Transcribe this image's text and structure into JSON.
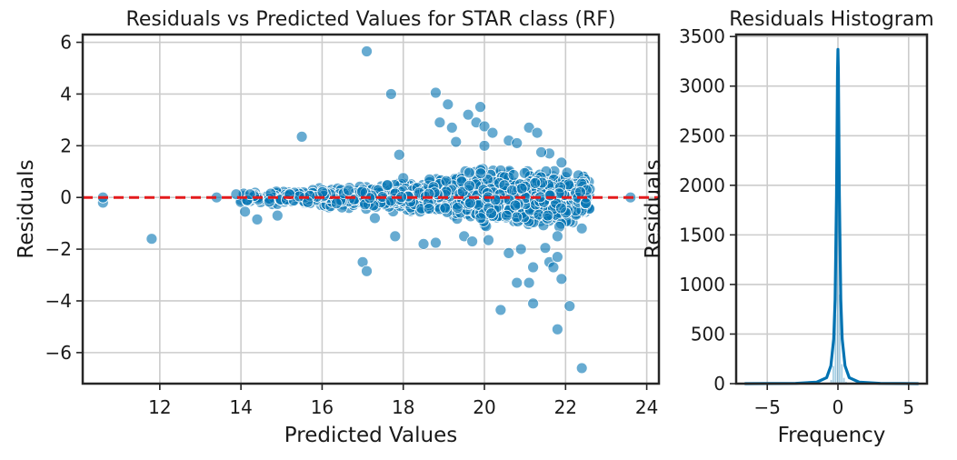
{
  "chart_data": [
    {
      "type": "scatter",
      "title": "Residuals vs Predicted Values for STAR class (RF)",
      "xlabel": "Predicted Values",
      "ylabel": "Residuals",
      "xlim": [
        10.1,
        24.3
      ],
      "ylim": [
        -7.2,
        6.3
      ],
      "xticks": [
        12,
        14,
        16,
        18,
        20,
        22,
        24
      ],
      "yticks": [
        -6,
        -4,
        -2,
        0,
        2,
        4,
        6
      ],
      "grid": true,
      "reference_line": {
        "y": 0,
        "style": "dashed",
        "color": "#e31a1c"
      },
      "point_color": "#0173b2",
      "outlier_points": [
        {
          "x": 10.6,
          "y": -0.2
        },
        {
          "x": 10.6,
          "y": 0.0
        },
        {
          "x": 11.8,
          "y": -1.6
        },
        {
          "x": 13.4,
          "y": 0.0
        },
        {
          "x": 15.5,
          "y": 2.35
        },
        {
          "x": 17.1,
          "y": 5.65
        },
        {
          "x": 17.7,
          "y": 4.0
        },
        {
          "x": 17.9,
          "y": 1.65
        },
        {
          "x": 17.8,
          "y": -1.5
        },
        {
          "x": 17.0,
          "y": -2.5
        },
        {
          "x": 17.1,
          "y": -2.85
        },
        {
          "x": 18.5,
          "y": -1.8
        },
        {
          "x": 18.8,
          "y": -1.75
        },
        {
          "x": 18.8,
          "y": 4.05
        },
        {
          "x": 18.9,
          "y": 2.9
        },
        {
          "x": 19.1,
          "y": 3.6
        },
        {
          "x": 19.2,
          "y": 2.7
        },
        {
          "x": 19.6,
          "y": 3.2
        },
        {
          "x": 19.9,
          "y": 3.5
        },
        {
          "x": 19.8,
          "y": 2.9
        },
        {
          "x": 20.0,
          "y": 2.75
        },
        {
          "x": 20.2,
          "y": 2.5
        },
        {
          "x": 20.0,
          "y": 2.0
        },
        {
          "x": 19.3,
          "y": 2.15
        },
        {
          "x": 21.1,
          "y": 2.7
        },
        {
          "x": 21.3,
          "y": 2.5
        },
        {
          "x": 20.6,
          "y": 2.2
        },
        {
          "x": 20.8,
          "y": 2.1
        },
        {
          "x": 21.6,
          "y": 1.7
        },
        {
          "x": 21.4,
          "y": 1.75
        },
        {
          "x": 21.9,
          "y": 1.35
        },
        {
          "x": 20.4,
          "y": -4.35
        },
        {
          "x": 20.8,
          "y": -3.3
        },
        {
          "x": 21.1,
          "y": -3.3
        },
        {
          "x": 21.2,
          "y": -2.7
        },
        {
          "x": 21.2,
          "y": -4.1
        },
        {
          "x": 21.6,
          "y": -2.5
        },
        {
          "x": 21.7,
          "y": -2.7
        },
        {
          "x": 21.8,
          "y": -2.3
        },
        {
          "x": 21.8,
          "y": -5.1
        },
        {
          "x": 21.9,
          "y": -3.15
        },
        {
          "x": 22.1,
          "y": -4.2
        },
        {
          "x": 22.4,
          "y": -6.6
        },
        {
          "x": 22.4,
          "y": -1.2
        },
        {
          "x": 23.6,
          "y": 0.0
        },
        {
          "x": 20.6,
          "y": -2.15
        },
        {
          "x": 20.9,
          "y": -2.0
        },
        {
          "x": 21.5,
          "y": -1.95
        },
        {
          "x": 19.5,
          "y": -1.5
        },
        {
          "x": 19.7,
          "y": -1.7
        },
        {
          "x": 20.1,
          "y": -1.65
        },
        {
          "x": 21.8,
          "y": -1.5
        },
        {
          "x": 14.4,
          "y": -0.85
        },
        {
          "x": 14.1,
          "y": -0.55
        },
        {
          "x": 14.9,
          "y": -0.7
        },
        {
          "x": 17.3,
          "y": -0.8
        },
        {
          "x": 18.0,
          "y": 0.75
        }
      ],
      "cluster_spread": [
        [
          13.7,
          0.2
        ],
        [
          16.0,
          0.35
        ],
        [
          18.0,
          0.5
        ],
        [
          19.0,
          0.75
        ],
        [
          20.5,
          1.0
        ],
        [
          22.5,
          0.9
        ]
      ]
    },
    {
      "type": "histogram",
      "title": "Residuals Histogram",
      "xlabel": "Frequency",
      "ylabel": "Residuals",
      "xlim": [
        -7.2,
        6.3
      ],
      "ylim": [
        0,
        3520
      ],
      "xticks": [
        -5,
        0,
        5
      ],
      "yticks": [
        0,
        500,
        1000,
        1500,
        2000,
        2500,
        3000,
        3500
      ],
      "grid": true,
      "bar_color": "#0173b2",
      "bins": {
        "x": [
          -0.7,
          -0.55,
          -0.4,
          -0.25,
          -0.1,
          0.05,
          0.2,
          0.35,
          0.5,
          0.65
        ],
        "counts": [
          10,
          40,
          180,
          700,
          3360,
          900,
          200,
          60,
          20,
          5
        ]
      },
      "kde": {
        "x": [
          -6.6,
          -3.0,
          -1.5,
          -0.8,
          -0.5,
          -0.3,
          -0.2,
          -0.1,
          -0.03,
          0.0,
          0.03,
          0.1,
          0.2,
          0.3,
          0.5,
          0.8,
          1.5,
          3.0,
          5.7
        ],
        "y": [
          0,
          3,
          15,
          60,
          180,
          450,
          850,
          1900,
          3150,
          3370,
          3150,
          1900,
          850,
          450,
          180,
          60,
          15,
          3,
          0
        ]
      }
    }
  ]
}
